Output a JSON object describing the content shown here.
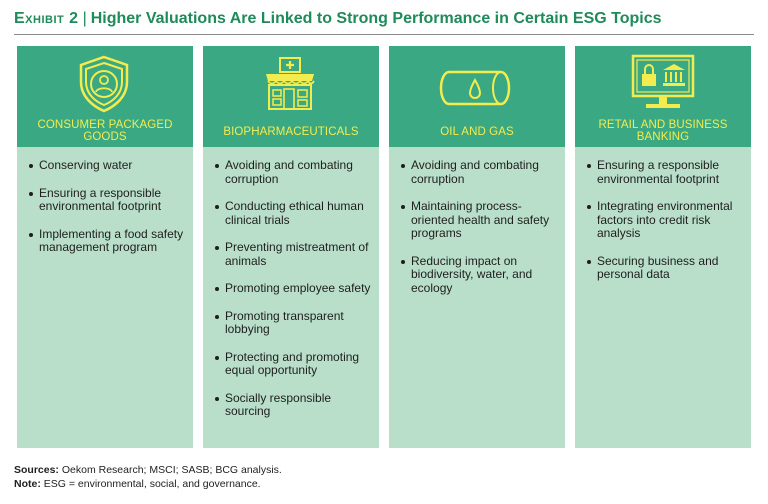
{
  "title": {
    "exhibit": "Exhibit 2",
    "separator": "|",
    "text": "Higher Valuations Are Linked to Strong Performance in Certain ESG Topics"
  },
  "colors": {
    "accent": "#3aa882",
    "header_text": "#f3ec4f",
    "body_bg": "#b9dfca",
    "title": "#1f8a5a"
  },
  "columns": [
    {
      "icon": "shield-person-icon",
      "heading": "CONSUMER PACKAGED GOODS",
      "items": [
        "Conserving water",
        "Ensuring a responsible environmental footprint",
        "Implementing a food safety management program"
      ]
    },
    {
      "icon": "pharmacy-store-icon",
      "heading": "BIOPHARMACEUTICALS",
      "items": [
        "Avoiding and combating corruption",
        "Conducting ethical human clinical trials",
        "Preventing mistreatment of animals",
        "Promoting employee safety",
        "Promoting transparent lobbying",
        "Protecting and promoting equal opportunity",
        "Socially responsible sourcing"
      ]
    },
    {
      "icon": "oil-tank-icon",
      "heading": "OIL AND GAS",
      "items": [
        "Avoiding and combating corruption",
        "Maintaining process-oriented health and safety programs",
        "Reducing impact on biodiversity, water, and ecology"
      ]
    },
    {
      "icon": "secure-bank-monitor-icon",
      "heading": "RETAIL AND BUSINESS BANKING",
      "items": [
        "Ensuring a responsible environmental footprint",
        "Integrating environmental factors into credit risk analysis",
        "Securing business and personal data"
      ]
    }
  ],
  "footer": {
    "sources_label": "Sources:",
    "sources_text": "Oekom Research; MSCI; SASB; BCG analysis.",
    "note_label": "Note:",
    "note_text": "ESG = environmental, social, and governance."
  }
}
